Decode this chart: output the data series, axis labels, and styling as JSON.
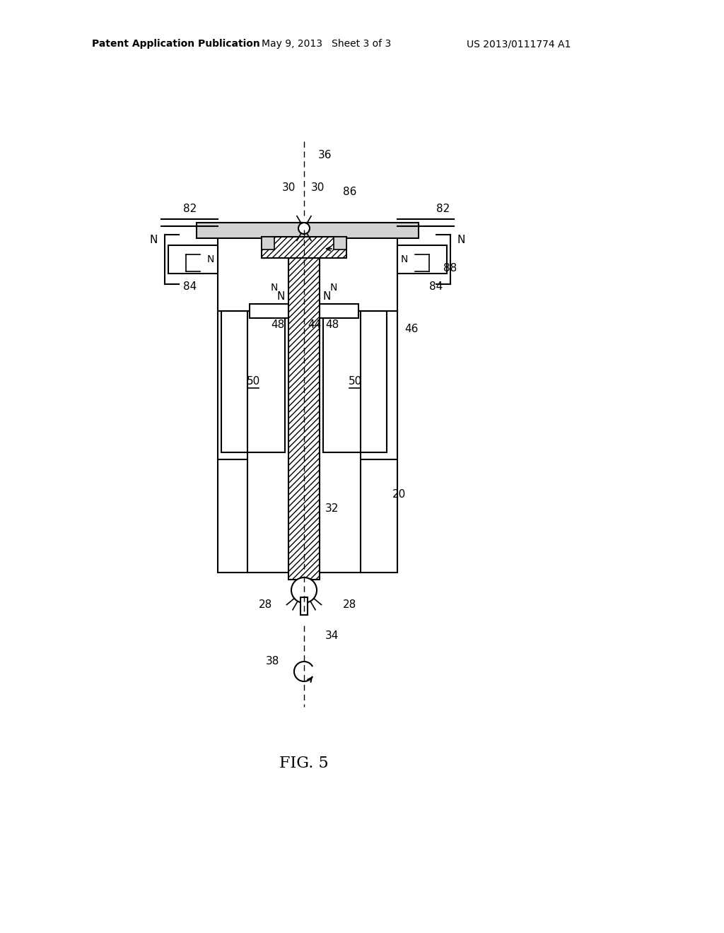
{
  "bg_color": "#ffffff",
  "header_left": "Patent Application Publication",
  "header_mid": "May 9, 2013   Sheet 3 of 3",
  "header_right": "US 2013/0111774 A1",
  "fig_label": "FIG. 5",
  "line_color": "#000000",
  "hatch_color": "#000000",
  "label_color": "#000000"
}
